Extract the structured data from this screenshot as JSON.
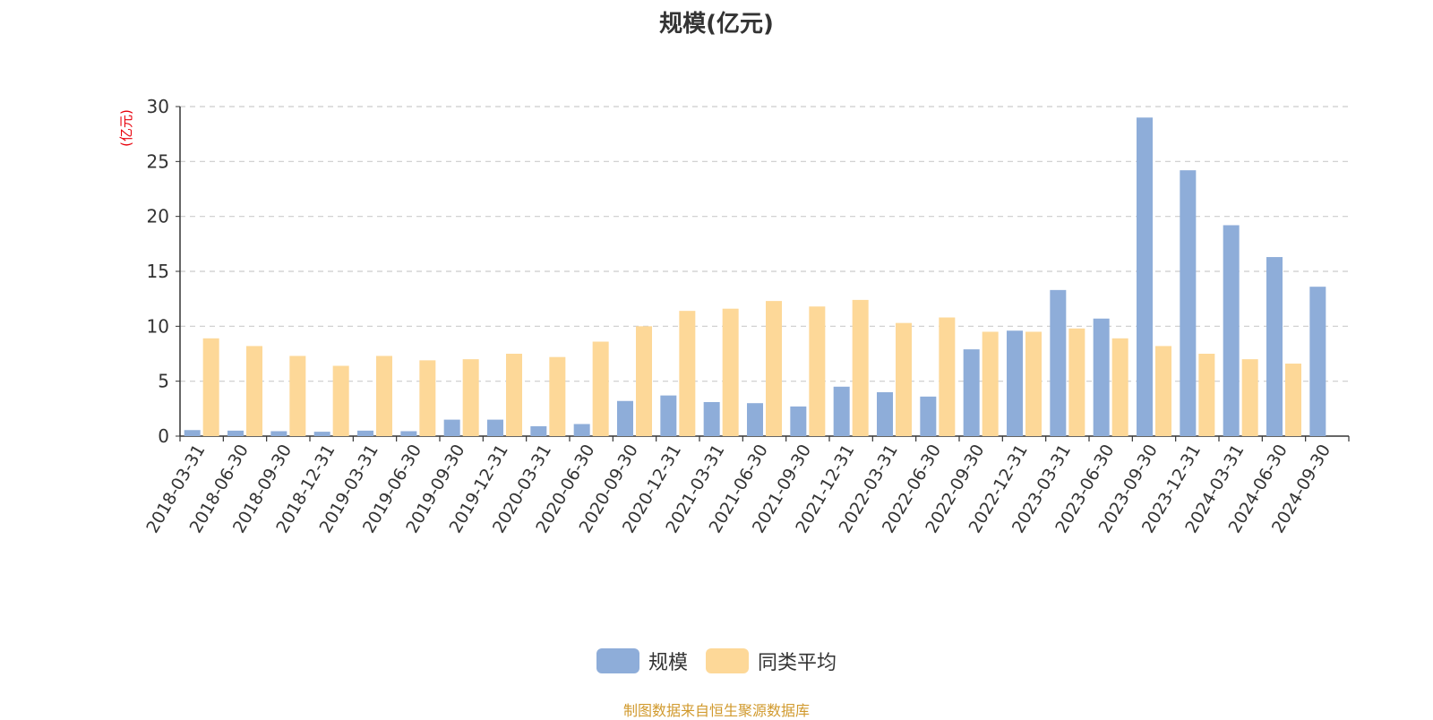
{
  "chart_data": {
    "type": "bar",
    "title": "规模(亿元)",
    "ylabel": "(亿元)",
    "ylim": [
      0,
      30
    ],
    "yticks": [
      0,
      5,
      10,
      15,
      20,
      25,
      30
    ],
    "grid": true,
    "legend_position": "bottom",
    "categories": [
      "2018-03-31",
      "2018-06-30",
      "2018-09-30",
      "2018-12-31",
      "2019-03-31",
      "2019-06-30",
      "2019-09-30",
      "2019-12-31",
      "2020-03-31",
      "2020-06-30",
      "2020-09-30",
      "2020-12-31",
      "2021-03-31",
      "2021-06-30",
      "2021-09-30",
      "2021-12-31",
      "2022-03-31",
      "2022-06-30",
      "2022-09-30",
      "2022-12-31",
      "2023-03-31",
      "2023-06-30",
      "2023-09-30",
      "2023-12-31",
      "2024-03-31",
      "2024-06-30",
      "2024-09-30"
    ],
    "series": [
      {
        "name": "规模",
        "color": "#8eadd9",
        "values": [
          0.55,
          0.5,
          0.45,
          0.4,
          0.5,
          0.45,
          1.5,
          1.5,
          0.9,
          1.1,
          3.2,
          3.7,
          3.1,
          3.0,
          2.7,
          4.5,
          4.0,
          3.6,
          7.9,
          9.6,
          13.3,
          10.7,
          29.0,
          24.2,
          19.2,
          16.3,
          13.6
        ]
      },
      {
        "name": "同类平均",
        "color": "#fdd898",
        "values": [
          8.9,
          8.2,
          7.3,
          6.4,
          7.3,
          6.9,
          7.0,
          7.5,
          7.2,
          8.6,
          10.0,
          11.4,
          11.6,
          12.3,
          11.8,
          12.4,
          10.3,
          10.8,
          9.5,
          9.5,
          9.8,
          8.9,
          8.2,
          7.5,
          7.0,
          6.6,
          null
        ]
      }
    ],
    "axis_label_color": "#e8000b"
  },
  "source_text": "制图数据来自恒生聚源数据库"
}
